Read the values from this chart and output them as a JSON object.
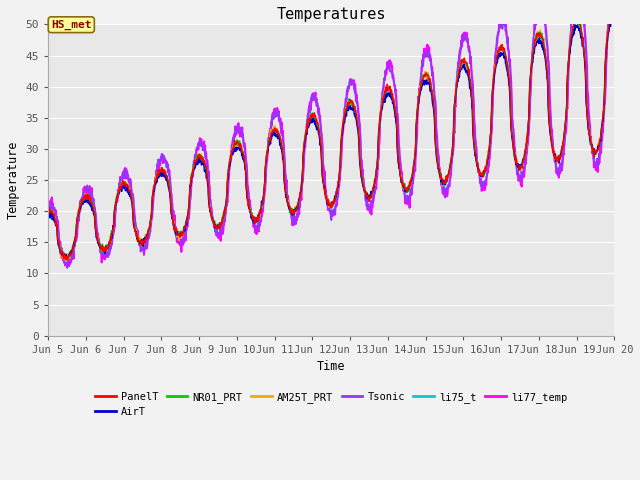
{
  "title": "Temperatures",
  "xlabel": "Time",
  "ylabel": "Temperature",
  "ylim": [
    0,
    50
  ],
  "xlim": [
    5.0,
    20.0
  ],
  "xtick_labels": [
    "Jun 5",
    "Jun 6",
    "Jun 7",
    "Jun 8",
    "Jun 9",
    "Jun 10",
    "Jun 11",
    "Jun 12",
    "Jun 13",
    "Jun 14",
    "Jun 15",
    "Jun 16",
    "Jun 17",
    "Jun 18",
    "Jun 19",
    "Jun 20"
  ],
  "ytick_values": [
    0,
    5,
    10,
    15,
    20,
    25,
    30,
    35,
    40,
    45,
    50
  ],
  "annotation_text": "HS_met",
  "annotation_color": "#8B0000",
  "annotation_bg": "#FFFF99",
  "annotation_border": "#8B6914",
  "series_names": [
    "PanelT",
    "AirT",
    "NR01_PRT",
    "AM25T_PRT",
    "Tsonic",
    "li75_t",
    "li77_temp"
  ],
  "series_colors": [
    "#FF0000",
    "#0000CD",
    "#00CC00",
    "#FFA500",
    "#9933FF",
    "#00CCCC",
    "#FF00FF"
  ],
  "series_lw": [
    1.0,
    1.0,
    1.0,
    1.0,
    1.2,
    1.0,
    1.4
  ],
  "bg_color": "#E8E8E8",
  "grid_color": "#FFFFFF",
  "font": "monospace",
  "fig_width": 6.4,
  "fig_height": 4.8,
  "dpi": 100
}
